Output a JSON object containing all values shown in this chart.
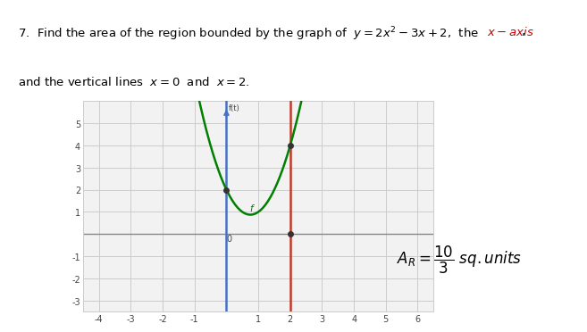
{
  "xmin": -4.5,
  "xmax": 6.5,
  "ymin": -3.5,
  "ymax": 6.0,
  "xticks": [
    -4,
    -3,
    -2,
    -1,
    1,
    2,
    3,
    4,
    5,
    6
  ],
  "yticks": [
    -3,
    -2,
    -1,
    1,
    2,
    3,
    4,
    5
  ],
  "curve_color": "#008000",
  "vline0_color": "#4472C4",
  "vline2_color": "#C0392B",
  "axis_color": "#888888",
  "grid_color": "#CCCCCC",
  "dot_color": "#333333",
  "background_color": "#FFFFFF",
  "plot_bg_color": "#F2F2F2",
  "text_color": "#000000",
  "red_text_color": "#CC0000"
}
